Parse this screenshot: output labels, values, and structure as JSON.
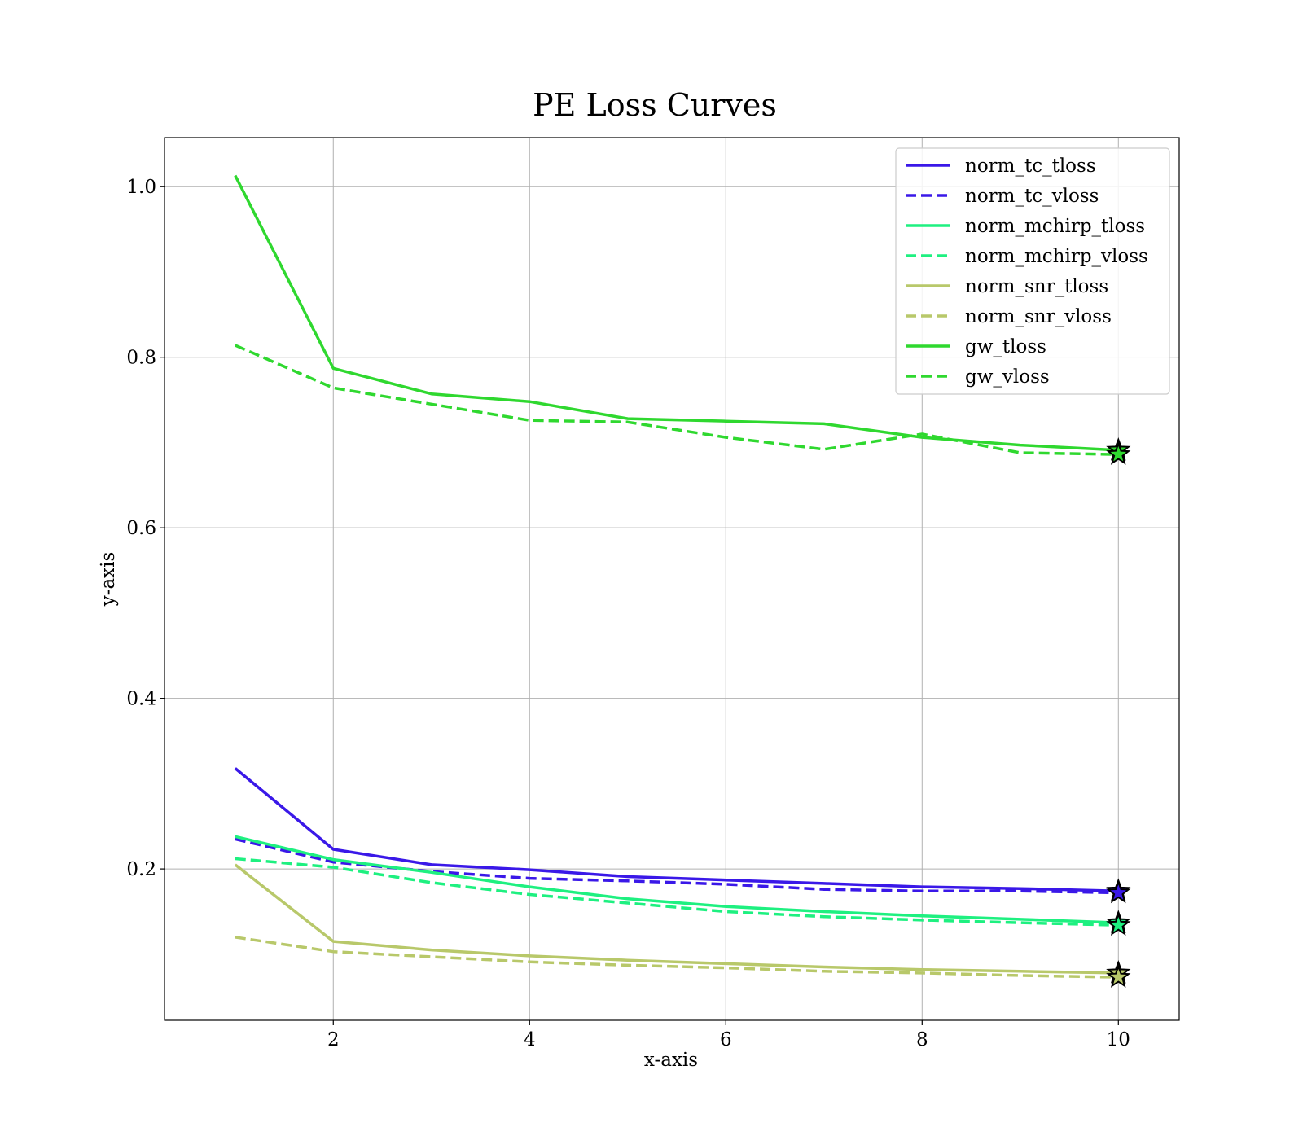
{
  "chart_data": {
    "type": "line",
    "title": "PE Loss Curves",
    "xlabel": "x-axis",
    "ylabel": "y-axis",
    "xlim": [
      0.28,
      10.62
    ],
    "ylim": [
      0.0225,
      1.0575
    ],
    "x_ticks": [
      2,
      4,
      6,
      8,
      10
    ],
    "y_ticks": [
      0.2,
      0.4,
      0.6,
      0.8,
      1.0
    ],
    "x_tick_labels": [
      "2",
      "4",
      "6",
      "8",
      "10"
    ],
    "y_tick_labels": [
      "0.2",
      "0.4",
      "0.6",
      "0.8",
      "1.0"
    ],
    "grid": true,
    "legend_position": "top-right",
    "end_marker": "star",
    "x": [
      1,
      2,
      3,
      4,
      5,
      6,
      7,
      8,
      9,
      10
    ],
    "series": [
      {
        "name": "norm_tc_tloss",
        "color": "#3a18e8",
        "style": "solid",
        "values": [
          0.318,
          0.223,
          0.205,
          0.199,
          0.191,
          0.187,
          0.183,
          0.179,
          0.177,
          0.174
        ]
      },
      {
        "name": "norm_tc_vloss",
        "color": "#3a18e8",
        "style": "dashed",
        "values": [
          0.235,
          0.208,
          0.197,
          0.189,
          0.186,
          0.182,
          0.176,
          0.174,
          0.174,
          0.172
        ]
      },
      {
        "name": "norm_mchirp_tloss",
        "color": "#1ef080",
        "style": "solid",
        "values": [
          0.238,
          0.211,
          0.196,
          0.179,
          0.165,
          0.156,
          0.15,
          0.145,
          0.141,
          0.137
        ]
      },
      {
        "name": "norm_mchirp_vloss",
        "color": "#1ef080",
        "style": "dashed",
        "values": [
          0.212,
          0.202,
          0.184,
          0.17,
          0.16,
          0.15,
          0.144,
          0.14,
          0.137,
          0.134
        ]
      },
      {
        "name": "norm_snr_tloss",
        "color": "#b8c86a",
        "style": "solid",
        "values": [
          0.205,
          0.115,
          0.105,
          0.098,
          0.093,
          0.089,
          0.085,
          0.082,
          0.08,
          0.078
        ]
      },
      {
        "name": "norm_snr_vloss",
        "color": "#b8c86a",
        "style": "dashed",
        "values": [
          0.12,
          0.103,
          0.097,
          0.091,
          0.087,
          0.084,
          0.08,
          0.078,
          0.075,
          0.073
        ]
      },
      {
        "name": "gw_tloss",
        "color": "#2fd82f",
        "style": "solid",
        "values": [
          1.013,
          0.787,
          0.757,
          0.748,
          0.728,
          0.725,
          0.722,
          0.706,
          0.697,
          0.691
        ]
      },
      {
        "name": "gw_vloss",
        "color": "#2fd82f",
        "style": "dashed",
        "values": [
          0.814,
          0.764,
          0.745,
          0.726,
          0.724,
          0.706,
          0.692,
          0.71,
          0.688,
          0.686
        ]
      }
    ]
  }
}
